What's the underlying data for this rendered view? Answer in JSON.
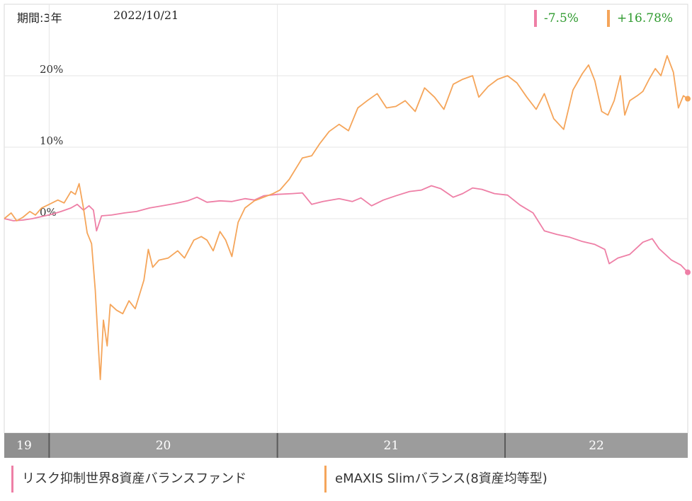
{
  "header": {
    "period": "期間:3年",
    "date": "2022/10/21"
  },
  "returns": [
    {
      "value": "-7.5%",
      "color": "#ee7fa6"
    },
    {
      "value": "+16.78%",
      "color": "#2e9a2e"
    }
  ],
  "legend": [
    {
      "label": "リスク抑制世界8資産バランスファンド",
      "color": "#ee7fa6"
    },
    {
      "label": "eMAXIS Slimバランス(8資産均等型)",
      "color": "#f5a55a"
    }
  ],
  "chart_data": {
    "type": "line",
    "x_axis": {
      "labels": [
        "19",
        "20",
        "21",
        "22"
      ],
      "range": [
        "2019-10-21",
        "2022-10-21"
      ],
      "year_starts": [
        "2020-01-01",
        "2021-01-01",
        "2022-01-01"
      ]
    },
    "y_axis": {
      "ticks": [
        0,
        10,
        20
      ],
      "tick_labels": [
        "0%",
        "10%",
        "20%"
      ],
      "range": [
        -30,
        30
      ]
    },
    "grid": true,
    "series": [
      {
        "name": "リスク抑制世界8資産バランスファンド",
        "color": "#ee7fa6",
        "points": [
          [
            "2019-10-21",
            0
          ],
          [
            "2019-11-05",
            -0.3
          ],
          [
            "2019-11-20",
            -0.2
          ],
          [
            "2019-12-05",
            0.0
          ],
          [
            "2019-12-20",
            0.3
          ],
          [
            "2020-01-05",
            0.6
          ],
          [
            "2020-01-20",
            1.0
          ],
          [
            "2020-02-05",
            1.5
          ],
          [
            "2020-02-15",
            2.0
          ],
          [
            "2020-02-25",
            1.2
          ],
          [
            "2020-03-05",
            1.8
          ],
          [
            "2020-03-12",
            1.2
          ],
          [
            "2020-03-17",
            -1.7
          ],
          [
            "2020-03-25",
            0.4
          ],
          [
            "2020-04-10",
            0.5
          ],
          [
            "2020-05-01",
            0.8
          ],
          [
            "2020-05-20",
            1.0
          ],
          [
            "2020-06-10",
            1.5
          ],
          [
            "2020-07-01",
            1.8
          ],
          [
            "2020-07-20",
            2.1
          ],
          [
            "2020-08-10",
            2.5
          ],
          [
            "2020-08-25",
            3.0
          ],
          [
            "2020-09-10",
            2.3
          ],
          [
            "2020-10-01",
            2.5
          ],
          [
            "2020-10-20",
            2.4
          ],
          [
            "2020-11-10",
            2.8
          ],
          [
            "2020-11-25",
            2.6
          ],
          [
            "2020-12-10",
            3.2
          ],
          [
            "2021-01-01",
            3.4
          ],
          [
            "2021-01-25",
            3.5
          ],
          [
            "2021-02-10",
            3.6
          ],
          [
            "2021-02-25",
            2.0
          ],
          [
            "2021-03-15",
            2.4
          ],
          [
            "2021-04-10",
            2.8
          ],
          [
            "2021-05-01",
            2.4
          ],
          [
            "2021-05-15",
            2.9
          ],
          [
            "2021-06-01",
            1.8
          ],
          [
            "2021-06-20",
            2.6
          ],
          [
            "2021-07-10",
            3.2
          ],
          [
            "2021-08-01",
            3.8
          ],
          [
            "2021-08-20",
            4.0
          ],
          [
            "2021-09-05",
            4.6
          ],
          [
            "2021-09-20",
            4.2
          ],
          [
            "2021-10-10",
            3.0
          ],
          [
            "2021-10-25",
            3.5
          ],
          [
            "2021-11-10",
            4.3
          ],
          [
            "2021-11-25",
            4.1
          ],
          [
            "2021-12-15",
            3.5
          ],
          [
            "2022-01-05",
            3.3
          ],
          [
            "2022-01-25",
            1.9
          ],
          [
            "2022-02-15",
            0.8
          ],
          [
            "2022-03-05",
            -1.7
          ],
          [
            "2022-03-25",
            -2.2
          ],
          [
            "2022-04-15",
            -2.6
          ],
          [
            "2022-05-05",
            -3.2
          ],
          [
            "2022-05-25",
            -3.6
          ],
          [
            "2022-06-10",
            -4.3
          ],
          [
            "2022-06-17",
            -6.3
          ],
          [
            "2022-07-01",
            -5.5
          ],
          [
            "2022-07-20",
            -5.0
          ],
          [
            "2022-08-10",
            -3.3
          ],
          [
            "2022-08-25",
            -2.8
          ],
          [
            "2022-09-05",
            -4.2
          ],
          [
            "2022-09-25",
            -5.8
          ],
          [
            "2022-10-10",
            -6.5
          ],
          [
            "2022-10-21",
            -7.5
          ]
        ]
      },
      {
        "name": "eMAXIS Slimバランス(8資産均等型)",
        "color": "#f5a55a",
        "points": [
          [
            "2019-10-21",
            0
          ],
          [
            "2019-11-01",
            0.8
          ],
          [
            "2019-11-10",
            -0.3
          ],
          [
            "2019-11-20",
            0.2
          ],
          [
            "2019-12-01",
            1.0
          ],
          [
            "2019-12-10",
            0.5
          ],
          [
            "2019-12-20",
            1.5
          ],
          [
            "2020-01-01",
            2.0
          ],
          [
            "2020-01-15",
            2.6
          ],
          [
            "2020-01-25",
            2.2
          ],
          [
            "2020-02-05",
            3.8
          ],
          [
            "2020-02-12",
            3.4
          ],
          [
            "2020-02-18",
            4.9
          ],
          [
            "2020-02-25",
            1.5
          ],
          [
            "2020-03-02",
            -2.0
          ],
          [
            "2020-03-09",
            -3.5
          ],
          [
            "2020-03-15",
            -10.0
          ],
          [
            "2020-03-19",
            -16.5
          ],
          [
            "2020-03-23",
            -22.5
          ],
          [
            "2020-03-28",
            -14.2
          ],
          [
            "2020-04-03",
            -17.8
          ],
          [
            "2020-04-08",
            -12.0
          ],
          [
            "2020-04-18",
            -12.8
          ],
          [
            "2020-04-28",
            -13.3
          ],
          [
            "2020-05-08",
            -11.5
          ],
          [
            "2020-05-18",
            -12.6
          ],
          [
            "2020-06-01",
            -8.6
          ],
          [
            "2020-06-08",
            -4.3
          ],
          [
            "2020-06-15",
            -6.8
          ],
          [
            "2020-06-25",
            -5.8
          ],
          [
            "2020-07-10",
            -5.5
          ],
          [
            "2020-07-25",
            -4.5
          ],
          [
            "2020-08-05",
            -5.5
          ],
          [
            "2020-08-20",
            -3.0
          ],
          [
            "2020-09-01",
            -2.5
          ],
          [
            "2020-09-10",
            -3.0
          ],
          [
            "2020-09-20",
            -4.5
          ],
          [
            "2020-10-01",
            -1.8
          ],
          [
            "2020-10-10",
            -3.0
          ],
          [
            "2020-10-20",
            -5.3
          ],
          [
            "2020-10-30",
            -0.5
          ],
          [
            "2020-11-10",
            1.5
          ],
          [
            "2020-11-25",
            2.5
          ],
          [
            "2020-12-10",
            3.0
          ],
          [
            "2020-12-25",
            3.5
          ],
          [
            "2021-01-05",
            4.0
          ],
          [
            "2021-01-20",
            5.5
          ],
          [
            "2021-02-10",
            8.5
          ],
          [
            "2021-02-25",
            8.8
          ],
          [
            "2021-03-10",
            10.5
          ],
          [
            "2021-03-25",
            12.2
          ],
          [
            "2021-04-10",
            13.2
          ],
          [
            "2021-04-25",
            12.3
          ],
          [
            "2021-05-10",
            15.5
          ],
          [
            "2021-05-25",
            16.5
          ],
          [
            "2021-06-10",
            17.5
          ],
          [
            "2021-06-25",
            15.5
          ],
          [
            "2021-07-10",
            15.7
          ],
          [
            "2021-07-25",
            16.5
          ],
          [
            "2021-08-10",
            15.0
          ],
          [
            "2021-08-25",
            18.3
          ],
          [
            "2021-09-10",
            17.0
          ],
          [
            "2021-09-25",
            15.3
          ],
          [
            "2021-10-10",
            18.8
          ],
          [
            "2021-10-25",
            19.5
          ],
          [
            "2021-11-10",
            20.0
          ],
          [
            "2021-11-20",
            17.0
          ],
          [
            "2021-12-05",
            18.5
          ],
          [
            "2021-12-20",
            19.5
          ],
          [
            "2022-01-05",
            20.0
          ],
          [
            "2022-01-20",
            19.0
          ],
          [
            "2022-02-05",
            17.0
          ],
          [
            "2022-02-20",
            15.3
          ],
          [
            "2022-03-05",
            17.5
          ],
          [
            "2022-03-20",
            14.0
          ],
          [
            "2022-04-05",
            12.5
          ],
          [
            "2022-04-20",
            18.0
          ],
          [
            "2022-05-05",
            20.3
          ],
          [
            "2022-05-15",
            21.5
          ],
          [
            "2022-05-25",
            19.3
          ],
          [
            "2022-06-05",
            15.0
          ],
          [
            "2022-06-15",
            14.5
          ],
          [
            "2022-06-25",
            16.5
          ],
          [
            "2022-07-05",
            20.0
          ],
          [
            "2022-07-12",
            14.5
          ],
          [
            "2022-07-20",
            16.5
          ],
          [
            "2022-08-01",
            17.2
          ],
          [
            "2022-08-10",
            17.8
          ],
          [
            "2022-08-20",
            19.5
          ],
          [
            "2022-08-30",
            21.0
          ],
          [
            "2022-09-08",
            20.0
          ],
          [
            "2022-09-18",
            22.8
          ],
          [
            "2022-09-28",
            20.5
          ],
          [
            "2022-10-06",
            15.5
          ],
          [
            "2022-10-14",
            17.2
          ],
          [
            "2022-10-21",
            16.78
          ]
        ]
      }
    ]
  }
}
